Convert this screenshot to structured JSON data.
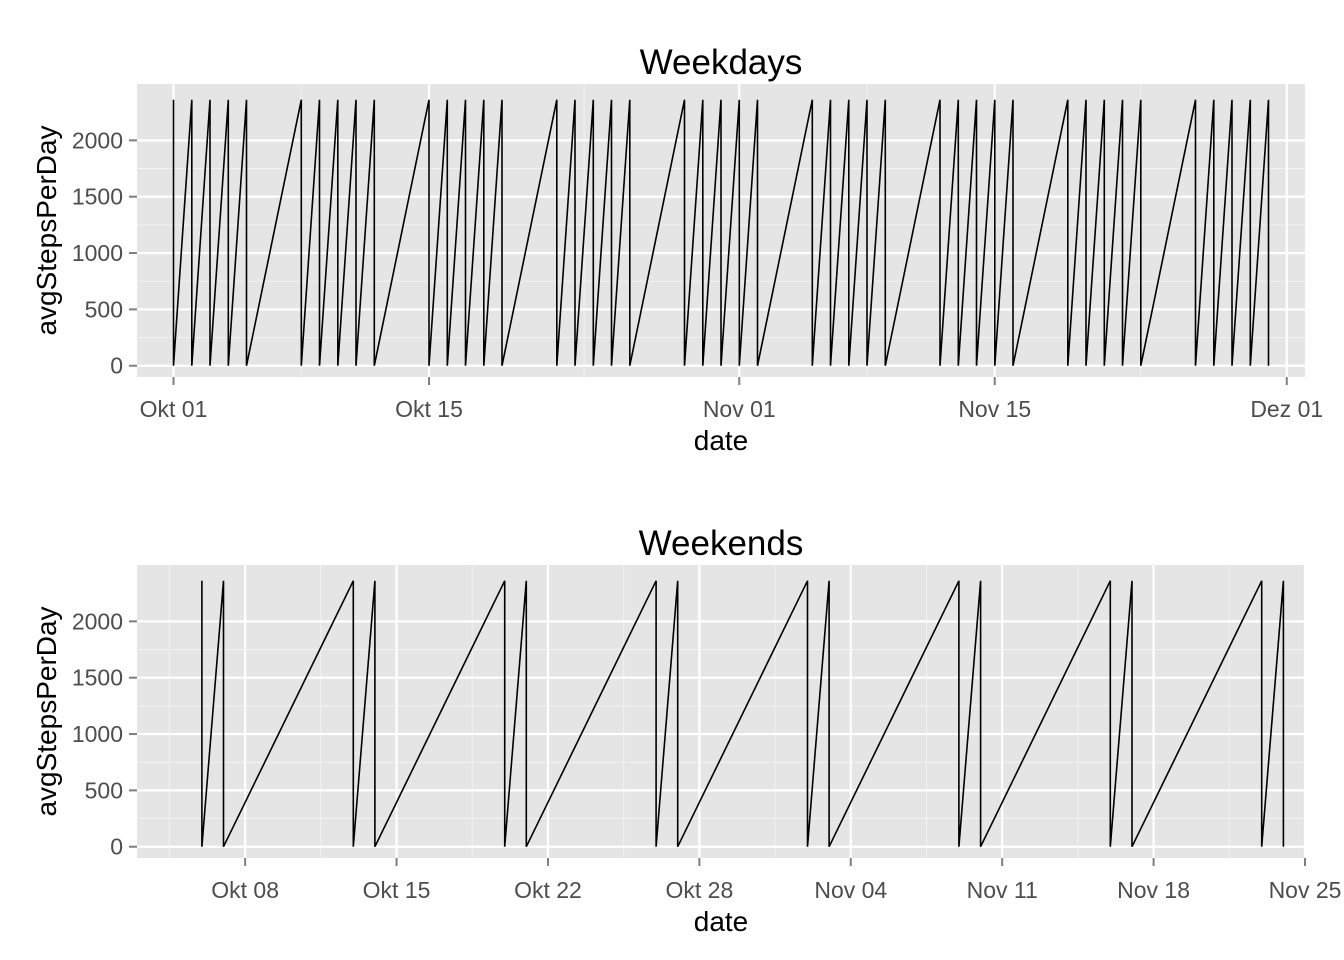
{
  "chart_data": [
    {
      "type": "line",
      "title": "Weekdays",
      "xlabel": "date",
      "ylabel": "avgStepsPerDay",
      "x_type": "date",
      "xlim": [
        "2012-09-29",
        "2012-12-02"
      ],
      "ylim": [
        -100,
        2500
      ],
      "grid": true,
      "x_ticks": [
        {
          "value": "2012-10-01",
          "label": "Okt 01"
        },
        {
          "value": "2012-10-15",
          "label": "Okt 15"
        },
        {
          "value": "2012-11-01",
          "label": "Nov 01"
        },
        {
          "value": "2012-11-15",
          "label": "Nov 15"
        },
        {
          "value": "2012-12-01",
          "label": "Dez 01"
        }
      ],
      "y_ticks": [
        {
          "value": 0,
          "label": "0"
        },
        {
          "value": 500,
          "label": "500"
        },
        {
          "value": 1000,
          "label": "1000"
        },
        {
          "value": 1500,
          "label": "1500"
        },
        {
          "value": 2000,
          "label": "2000"
        }
      ],
      "series": [
        {
          "color": "#000000",
          "dates": [
            "2012-10-01",
            "2012-10-02",
            "2012-10-03",
            "2012-10-04",
            "2012-10-05",
            "2012-10-08",
            "2012-10-09",
            "2012-10-10",
            "2012-10-11",
            "2012-10-12",
            "2012-10-15",
            "2012-10-16",
            "2012-10-17",
            "2012-10-18",
            "2012-10-19",
            "2012-10-22",
            "2012-10-23",
            "2012-10-24",
            "2012-10-25",
            "2012-10-26",
            "2012-10-29",
            "2012-10-30",
            "2012-10-31",
            "2012-11-01",
            "2012-11-02",
            "2012-11-05",
            "2012-11-06",
            "2012-11-07",
            "2012-11-08",
            "2012-11-09",
            "2012-11-12",
            "2012-11-13",
            "2012-11-14",
            "2012-11-15",
            "2012-11-16",
            "2012-11-19",
            "2012-11-20",
            "2012-11-21",
            "2012-11-22",
            "2012-11-23",
            "2012-11-26",
            "2012-11-27",
            "2012-11-28",
            "2012-11-29",
            "2012-11-30"
          ],
          "y_low": 0,
          "y_high": 2360
        }
      ]
    },
    {
      "type": "line",
      "title": "Weekends",
      "xlabel": "date",
      "ylabel": "avgStepsPerDay",
      "x_type": "date",
      "xlim": [
        "2012-10-03",
        "2012-11-26"
      ],
      "ylim": [
        -100,
        2500
      ],
      "grid": true,
      "x_ticks": [
        {
          "value": "2012-10-08",
          "label": "Okt 08"
        },
        {
          "value": "2012-10-15",
          "label": "Okt 15"
        },
        {
          "value": "2012-10-22",
          "label": "Okt 22"
        },
        {
          "value": "2012-10-29",
          "label": "Okt 28"
        },
        {
          "value": "2012-11-05",
          "label": "Nov 04"
        },
        {
          "value": "2012-11-12",
          "label": "Nov 11"
        },
        {
          "value": "2012-11-19",
          "label": "Nov 18"
        },
        {
          "value": "2012-11-26",
          "label": "Nov 25"
        }
      ],
      "y_ticks": [
        {
          "value": 0,
          "label": "0"
        },
        {
          "value": 500,
          "label": "500"
        },
        {
          "value": 1000,
          "label": "1000"
        },
        {
          "value": 1500,
          "label": "1500"
        },
        {
          "value": 2000,
          "label": "2000"
        }
      ],
      "series": [
        {
          "color": "#000000",
          "dates": [
            "2012-10-06",
            "2012-10-07",
            "2012-10-13",
            "2012-10-14",
            "2012-10-20",
            "2012-10-21",
            "2012-10-27",
            "2012-10-28",
            "2012-11-03",
            "2012-11-04",
            "2012-11-10",
            "2012-11-11",
            "2012-11-17",
            "2012-11-18",
            "2012-11-24",
            "2012-11-25"
          ],
          "y_low": 0,
          "y_high": 2360
        }
      ]
    }
  ]
}
